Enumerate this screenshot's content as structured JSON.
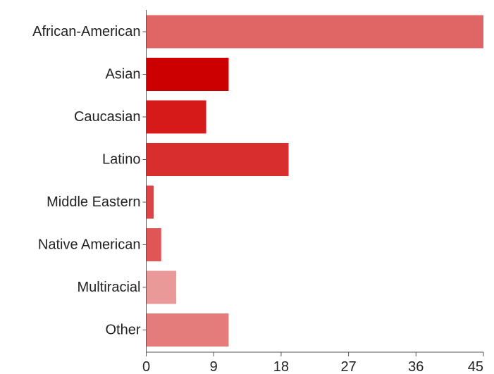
{
  "chart_data": {
    "type": "bar",
    "orientation": "horizontal",
    "title": "",
    "xlabel": "",
    "ylabel": "",
    "categories": [
      "African-American",
      "Asian",
      "Caucasian",
      "Latino",
      "Middle Eastern",
      "Native American",
      "Multiracial",
      "Other"
    ],
    "values": [
      45,
      11,
      8,
      19,
      1,
      2,
      4,
      11
    ],
    "colors": [
      "#e06666",
      "#cc0000",
      "#d61a1a",
      "#d92e2e",
      "#dc4545",
      "#e05555",
      "#ea9999",
      "#e57c7c"
    ],
    "xlim": [
      0,
      45
    ],
    "ticks": [
      0,
      9,
      18,
      27,
      36,
      45
    ],
    "tick_labels": [
      "0",
      "9",
      "18",
      "27",
      "36",
      "45"
    ],
    "grid": false,
    "legend": "none"
  }
}
